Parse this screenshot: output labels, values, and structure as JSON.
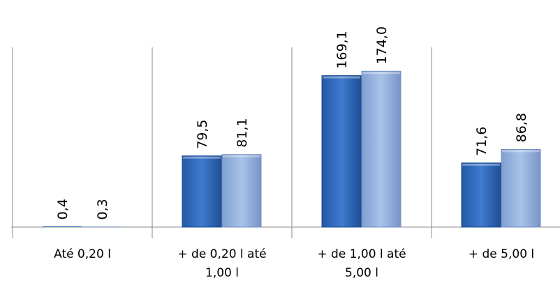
{
  "chart_data": {
    "type": "bar",
    "categories": [
      [
        "Até 0,20 l"
      ],
      [
        "+ de 0,20 l até",
        "1,00 l"
      ],
      [
        "+ de 1,00 l até",
        "5,00 l"
      ],
      [
        "+ de 5,00 l"
      ]
    ],
    "series": [
      {
        "values": [
          0.4,
          79.5,
          169.1,
          71.6
        ],
        "labels": [
          "0,4",
          "79,5",
          "169,1",
          "71,6"
        ],
        "color": "#2e64b4"
      },
      {
        "values": [
          0.3,
          81.1,
          174.0,
          86.8
        ],
        "labels": [
          "0,3",
          "81,1",
          "174,0",
          "86,8"
        ],
        "color": "#8fb0de"
      }
    ],
    "ylim": [
      0,
      175
    ],
    "grid": false,
    "legend": "none",
    "data_labels": "rotated-vertical"
  }
}
